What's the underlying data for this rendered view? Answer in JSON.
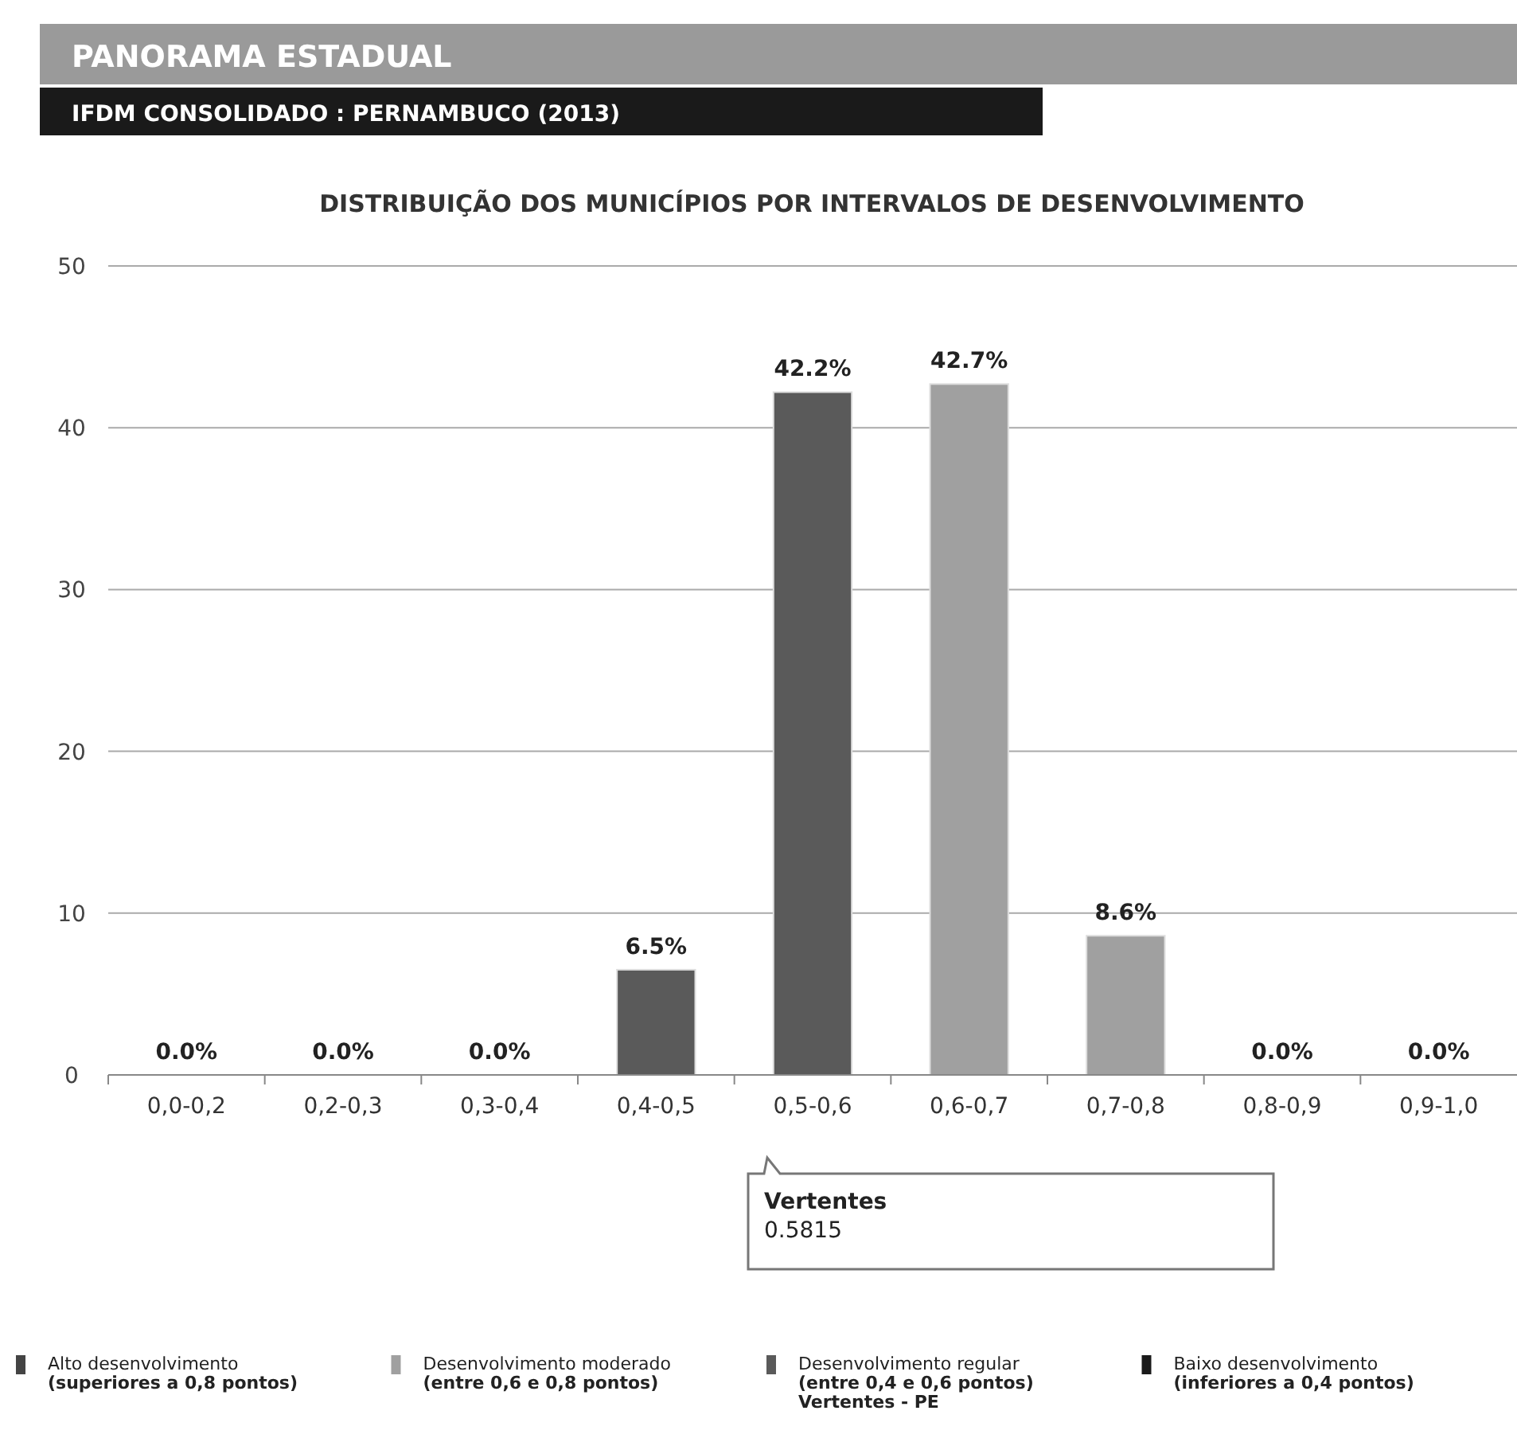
{
  "chart_data": {
    "type": "bar",
    "title": "DISTRIBUIÇÃO DOS MUNICÍPIOS POR INTERVALOS DE DESENVOLVIMENTO",
    "subtitle": "IFDM CONSOLIDADO : PERNAMBUCO (2013)",
    "annotations": [
      "PANORAMA ESTADUAL",
      "Vertentes\n0.5815"
    ],
    "categories": [
      "0,0-0,2",
      "0,2-0,3",
      "0,3-0,4",
      "0,4-0,5",
      "0,5-0,6",
      "0,6-0,7",
      "0,7-0,8",
      "0,8-0,9",
      "0,9-1,0"
    ],
    "series": [
      {
        "name": "Alto desenvolvimento\n(superiores a 0,8 pontos)",
        "color": "#444444",
        "values": [
          null,
          null,
          null,
          null,
          null,
          null,
          null,
          0,
          0
        ],
        "value_labels": [
          null,
          null,
          null,
          null,
          null,
          null,
          null,
          "0.0%",
          "0.0%"
        ]
      },
      {
        "name": "Desenvolvimento moderado\n(entre 0,6 e 0,8 pontos)",
        "color": "#a0a0a0",
        "values": [
          null,
          null,
          null,
          null,
          null,
          42.7,
          8.6,
          null,
          null
        ],
        "value_labels": [
          null,
          null,
          null,
          null,
          null,
          "42.7%",
          "8.6%",
          null,
          null
        ]
      },
      {
        "name": "Desenvolvimento regular\n(entre 0,4 e 0,6 pontos)\nVertentes - PE",
        "color": "#5a5a5a",
        "values": [
          null,
          null,
          null,
          6.5,
          42.2,
          null,
          null,
          null,
          null
        ],
        "value_labels": [
          null,
          null,
          null,
          "6.5%",
          "42.2%",
          null,
          null,
          null,
          null
        ]
      },
      {
        "name": "Baixo desenvolvimento\n(inferiores a 0,4 pontos)",
        "color": "#1a1a1a",
        "values": [
          0,
          0,
          0,
          null,
          null,
          null,
          null,
          null,
          null
        ],
        "value_labels": [
          "0.0%",
          "0.0%",
          "0.0%",
          null,
          null,
          null,
          null,
          null,
          null
        ]
      }
    ],
    "ylim": [
      0,
      50
    ],
    "yticks": [
      0,
      10,
      20,
      30,
      40,
      50
    ],
    "grid": "y",
    "legend": "bottom"
  }
}
